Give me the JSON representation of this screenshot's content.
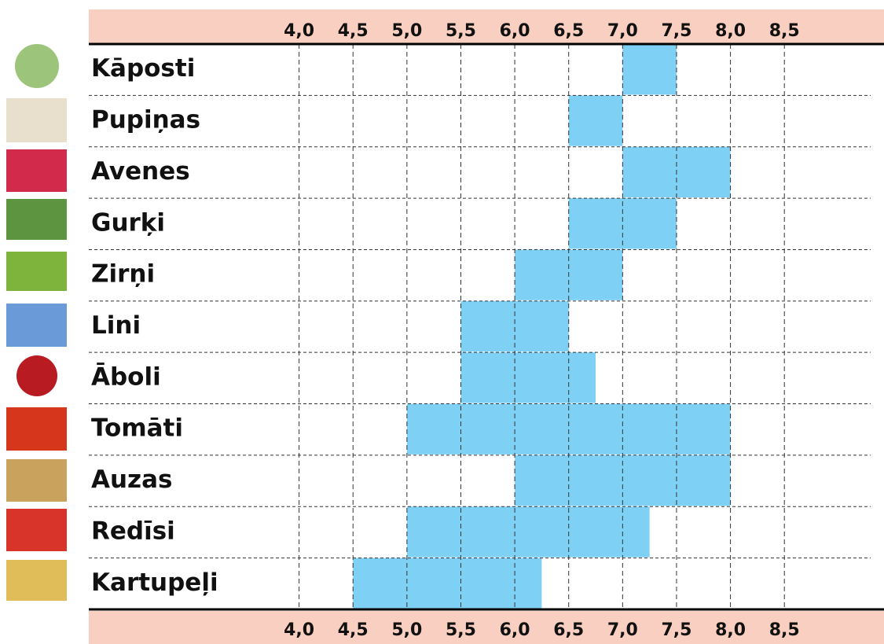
{
  "chart_data": {
    "type": "range-bar",
    "categories": [
      "Kāposti",
      "Pupiņas",
      "Avenes",
      "Gurķi",
      "Zirņi",
      "Lini",
      "Āboli",
      "Tomāti",
      "Auzas",
      "Redīsi",
      "Kartupeļi"
    ],
    "values": [
      [
        7.0,
        7.5
      ],
      [
        6.5,
        7.0
      ],
      [
        7.0,
        8.0
      ],
      [
        6.5,
        7.5
      ],
      [
        6.0,
        7.0
      ],
      [
        5.5,
        6.5
      ],
      [
        5.5,
        6.75
      ],
      [
        5.0,
        8.0
      ],
      [
        6.0,
        8.0
      ],
      [
        5.0,
        7.25
      ],
      [
        4.5,
        6.25
      ]
    ],
    "color": "#7fd0f5",
    "xlim": [
      2.05,
      9.3
    ],
    "xticks": [
      {
        "value": 4.0,
        "label": "4,0"
      },
      {
        "value": 4.5,
        "label": "4,5"
      },
      {
        "value": 5.0,
        "label": "5,0"
      },
      {
        "value": 5.5,
        "label": "5,5"
      },
      {
        "value": 6.0,
        "label": "6,0"
      },
      {
        "value": 6.5,
        "label": "6,5"
      },
      {
        "value": 7.0,
        "label": "7,0"
      },
      {
        "value": 7.5,
        "label": "7,5"
      },
      {
        "value": 8.0,
        "label": "8,0"
      },
      {
        "value": 8.5,
        "label": "8,5"
      }
    ],
    "grid": true
  }
}
